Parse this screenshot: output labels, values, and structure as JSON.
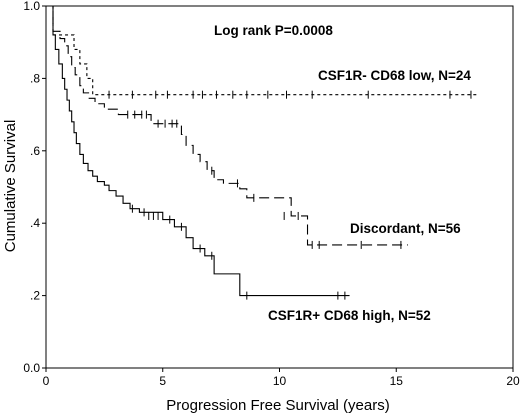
{
  "chart_data": {
    "type": "line",
    "subtype": "kaplan-meier",
    "xlabel": "Progression Free Survival (years)",
    "ylabel": "Cumulative Survival",
    "xlim": [
      0,
      20
    ],
    "ylim": [
      0,
      1.0
    ],
    "x_ticks": [
      0,
      5,
      10,
      15,
      20
    ],
    "x_tick_labels": [
      "0",
      "5",
      "10",
      "15",
      "20"
    ],
    "y_ticks": [
      0,
      0.2,
      0.4,
      0.6,
      0.8,
      1.0
    ],
    "y_tick_labels": [
      "0.0",
      ".2",
      ".4",
      ".6",
      ".8",
      "1.0"
    ],
    "grid": false,
    "annotations": {
      "stat": "Log rank P=0.0008"
    },
    "series": [
      {
        "name": "CSF1R- CD68 low, N=24",
        "style": "dotted",
        "steps": [
          [
            0,
            1.0
          ],
          [
            0.3,
            0.92
          ],
          [
            1.0,
            0.92
          ],
          [
            1.2,
            0.88
          ],
          [
            1.45,
            0.84
          ],
          [
            1.75,
            0.8
          ],
          [
            2.0,
            0.755
          ],
          [
            18.5,
            0.755
          ]
        ],
        "censored": [
          [
            2.7,
            0.755
          ],
          [
            3.7,
            0.755
          ],
          [
            4.7,
            0.755
          ],
          [
            5.2,
            0.755
          ],
          [
            6.3,
            0.755
          ],
          [
            6.7,
            0.755
          ],
          [
            7.3,
            0.755
          ],
          [
            8.0,
            0.755
          ],
          [
            8.6,
            0.755
          ],
          [
            9.5,
            0.755
          ],
          [
            10.3,
            0.755
          ],
          [
            11.4,
            0.755
          ],
          [
            13.8,
            0.755
          ],
          [
            17.3,
            0.755
          ],
          [
            18.2,
            0.755
          ]
        ]
      },
      {
        "name": "Discordant, N=56",
        "style": "dashed",
        "steps": [
          [
            0,
            1.0
          ],
          [
            0.3,
            0.93
          ],
          [
            0.6,
            0.91
          ],
          [
            0.8,
            0.89
          ],
          [
            0.95,
            0.86
          ],
          [
            1.1,
            0.83
          ],
          [
            1.25,
            0.81
          ],
          [
            1.45,
            0.78
          ],
          [
            1.6,
            0.76
          ],
          [
            1.85,
            0.745
          ],
          [
            2.1,
            0.73
          ],
          [
            2.5,
            0.715
          ],
          [
            3.1,
            0.7
          ],
          [
            4.5,
            0.675
          ],
          [
            5.8,
            0.645
          ],
          [
            6.0,
            0.615
          ],
          [
            6.3,
            0.59
          ],
          [
            6.6,
            0.57
          ],
          [
            6.9,
            0.545
          ],
          [
            7.2,
            0.52
          ],
          [
            7.6,
            0.51
          ],
          [
            8.3,
            0.495
          ],
          [
            8.6,
            0.47
          ],
          [
            10.5,
            0.42
          ],
          [
            11.2,
            0.34
          ],
          [
            15.5,
            0.34
          ]
        ],
        "censored": [
          [
            3.5,
            0.7
          ],
          [
            3.8,
            0.7
          ],
          [
            4.1,
            0.7
          ],
          [
            4.3,
            0.7
          ],
          [
            4.8,
            0.675
          ],
          [
            5.1,
            0.675
          ],
          [
            5.4,
            0.675
          ],
          [
            5.6,
            0.675
          ],
          [
            7.1,
            0.545
          ],
          [
            8.2,
            0.51
          ],
          [
            8.9,
            0.47
          ],
          [
            10.2,
            0.42
          ],
          [
            10.8,
            0.42
          ],
          [
            11.4,
            0.34
          ],
          [
            11.7,
            0.34
          ],
          [
            13.5,
            0.34
          ],
          [
            15.2,
            0.34
          ]
        ]
      },
      {
        "name": "CSF1R+ CD68 high, N=52",
        "style": "solid",
        "steps": [
          [
            0,
            1.0
          ],
          [
            0.3,
            0.92
          ],
          [
            0.4,
            0.88
          ],
          [
            0.55,
            0.84
          ],
          [
            0.7,
            0.8
          ],
          [
            0.8,
            0.77
          ],
          [
            0.9,
            0.74
          ],
          [
            1.0,
            0.71
          ],
          [
            1.1,
            0.68
          ],
          [
            1.2,
            0.65
          ],
          [
            1.3,
            0.62
          ],
          [
            1.45,
            0.59
          ],
          [
            1.6,
            0.565
          ],
          [
            1.8,
            0.545
          ],
          [
            2.0,
            0.53
          ],
          [
            2.2,
            0.515
          ],
          [
            2.5,
            0.505
          ],
          [
            2.7,
            0.49
          ],
          [
            3.0,
            0.475
          ],
          [
            3.3,
            0.455
          ],
          [
            3.6,
            0.44
          ],
          [
            4.0,
            0.43
          ],
          [
            5.0,
            0.41
          ],
          [
            5.5,
            0.39
          ],
          [
            6.0,
            0.36
          ],
          [
            6.3,
            0.33
          ],
          [
            6.8,
            0.31
          ],
          [
            7.2,
            0.26
          ],
          [
            8.3,
            0.2
          ],
          [
            13.0,
            0.2
          ]
        ],
        "censored": [
          [
            3.7,
            0.44
          ],
          [
            4.2,
            0.43
          ],
          [
            4.4,
            0.42
          ],
          [
            4.6,
            0.42
          ],
          [
            4.8,
            0.42
          ],
          [
            5.3,
            0.41
          ],
          [
            5.8,
            0.39
          ],
          [
            6.6,
            0.33
          ],
          [
            7.1,
            0.31
          ],
          [
            8.6,
            0.2
          ],
          [
            12.5,
            0.2
          ],
          [
            12.8,
            0.2
          ]
        ]
      }
    ]
  }
}
